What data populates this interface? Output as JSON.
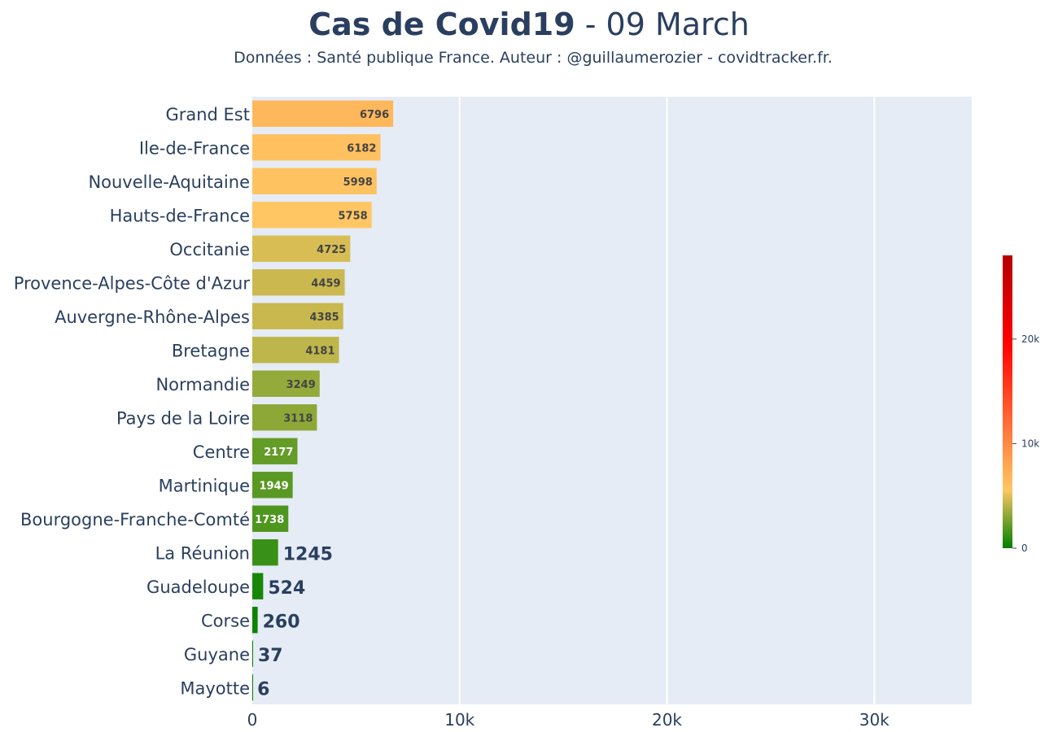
{
  "header": {
    "title_bold": "Cas de Covid19",
    "title_rest": " - 09 March",
    "subtitle": "Données : Santé publique France. Auteur : @guillaumerozier - covidtracker.fr."
  },
  "chart_data": {
    "type": "bar",
    "orientation": "horizontal",
    "categories": [
      "Grand Est",
      "Ile-de-France",
      "Nouvelle-Aquitaine",
      "Hauts-de-France",
      "Occitanie",
      "Provence-Alpes-Côte d'Azur",
      "Auvergne-Rhône-Alpes",
      "Bretagne",
      "Normandie",
      "Pays de la Loire",
      "Centre",
      "Martinique",
      "Bourgogne-Franche-Comté",
      "La Réunion",
      "Guadeloupe",
      "Corse",
      "Guyane",
      "Mayotte"
    ],
    "values": [
      6796,
      6182,
      5998,
      5758,
      4725,
      4459,
      4385,
      4181,
      3249,
      3118,
      2177,
      1949,
      1738,
      1245,
      524,
      260,
      37,
      6
    ],
    "data_labels": [
      "6796",
      "6182",
      "5998",
      "5758",
      "4725",
      "4459",
      "4385",
      "4181",
      "3249",
      "3118",
      "2177",
      "1949",
      "1738",
      "1245",
      "524",
      "260",
      "37",
      "6"
    ],
    "xlim": [
      0,
      34700
    ],
    "x_ticks": [
      0,
      10000,
      20000,
      30000
    ],
    "x_tick_labels": [
      "0",
      "10k",
      "20k",
      "30k"
    ],
    "grid": true,
    "colorscale": {
      "range": [
        0,
        28000
      ],
      "stops": [
        [
          0,
          "#008000"
        ],
        [
          0.2,
          "#ffc864"
        ],
        [
          0.7,
          "#ff0000"
        ],
        [
          1,
          "#b40000"
        ]
      ],
      "tick_values": [
        0,
        10000,
        20000
      ],
      "tick_labels": [
        "0",
        "10k",
        "20k"
      ]
    },
    "colors": {
      "plot_bg": "#e5ecf6",
      "grid": "#ffffff",
      "text": "#2a3f5f"
    }
  }
}
